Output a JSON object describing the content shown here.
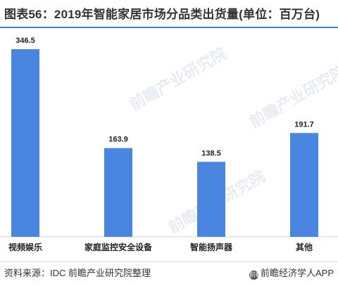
{
  "header": {
    "title": "图表56：2019年智能家居市场分品类出货量(单位：百万台)"
  },
  "watermark": {
    "text": "前瞻产业研究院"
  },
  "chart_data": {
    "type": "bar",
    "title": "图表56：2019年智能家居市场分品类出货量(单位：百万台)",
    "categories": [
      "视频娱乐",
      "家庭监控安全设备",
      "智能扬声器",
      "其他"
    ],
    "values": [
      346.5,
      163.9,
      138.5,
      191.7
    ],
    "value_labels": [
      "346.5",
      "163.9",
      "138.5",
      "191.7"
    ],
    "ylim": [
      0,
      346.5
    ],
    "grid": false,
    "legend": "none",
    "bar_color": "#4a86e0"
  },
  "footer": {
    "source": "资料来源：IDC  前瞻产业研究院整理",
    "brand": "前瞻经济学人APP",
    "brand_logo": "前瞻"
  }
}
